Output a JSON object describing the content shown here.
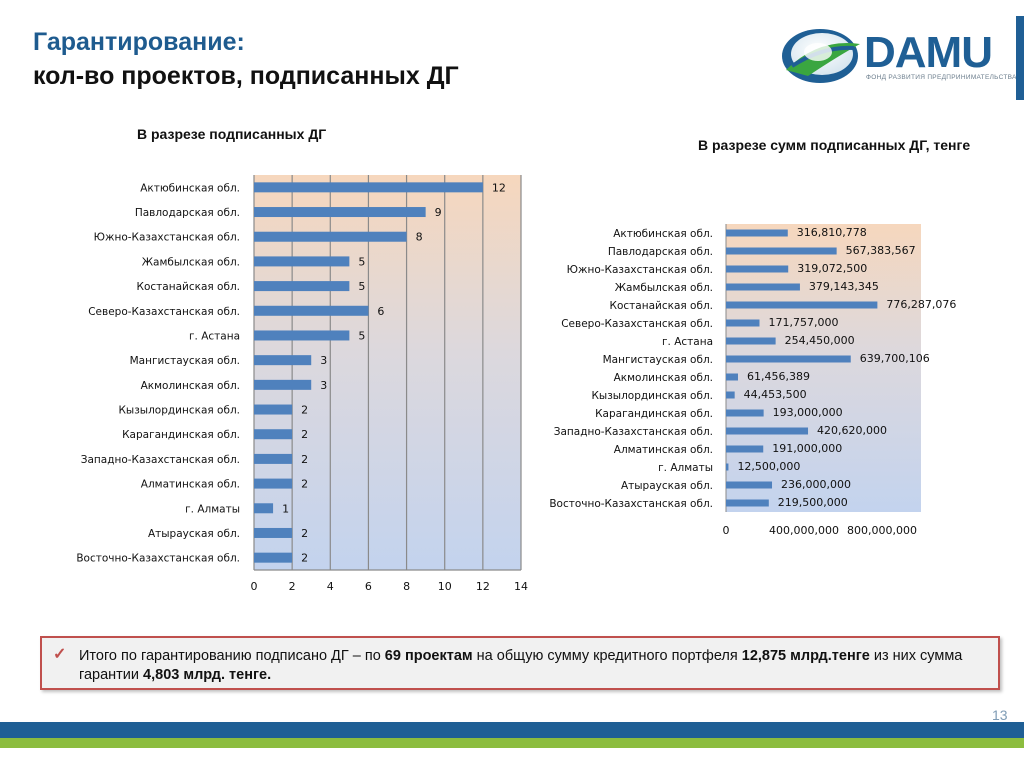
{
  "header": {
    "title_line1": "Гарантирование:",
    "title_line2": "кол-во проектов, подписанных ДГ"
  },
  "logo": {
    "name": "DAMU",
    "subtitle": "ФОНД РАЗВИТИЯ ПРЕДПРИНИМАТЕЛЬСТВА"
  },
  "chart_headings": {
    "left": "В разрезе подписанных ДГ",
    "right": "В разрезе сумм подписанных ДГ, тенге"
  },
  "chart_data": [
    {
      "type": "bar",
      "orientation": "horizontal",
      "title": "В разрезе подписанных ДГ",
      "categories": [
        "Актюбинская обл.",
        "Павлодарская обл.",
        "Южно-Казахстанская обл.",
        "Жамбылская обл.",
        "Костанайская обл.",
        "Северо-Казахстанская обл.",
        "г. Астана",
        "Мангистауская обл.",
        "Акмолинская обл.",
        "Кызылординская обл.",
        "Карагандинская обл.",
        "Западно-Казахстанская обл.",
        "Алматинская обл.",
        "г. Алматы",
        "Атырауская обл.",
        "Восточно-Казахстанская обл."
      ],
      "values": [
        12,
        9,
        8,
        5,
        5,
        6,
        5,
        3,
        3,
        2,
        2,
        2,
        2,
        1,
        2,
        2
      ],
      "data_labels": [
        "12",
        "9",
        "8",
        "5",
        "5",
        "6",
        "5",
        "3",
        "3",
        "2",
        "2",
        "2",
        "2",
        "1",
        "2",
        "2"
      ],
      "xlim": [
        0,
        14
      ],
      "xticks": [
        "0",
        "2",
        "4",
        "6",
        "8",
        "10",
        "12",
        "14"
      ],
      "grid": true,
      "bar_color": "#4f81bd"
    },
    {
      "type": "bar",
      "orientation": "horizontal",
      "title": "В разрезе сумм подписанных ДГ, тенге",
      "categories": [
        "Актюбинская обл.",
        "Павлодарская обл.",
        "Южно-Казахстанская обл.",
        "Жамбылская обл.",
        "Костанайская обл.",
        "Северо-Казахстанская обл.",
        "г. Астана",
        "Мангистауская обл.",
        "Акмолинская обл.",
        "Кызылординская обл.",
        "Карагандинская обл.",
        "Западно-Казахстанская обл.",
        "Алматинская обл.",
        "г. Алматы",
        "Атырауская обл.",
        "Восточно-Казахстанская обл."
      ],
      "values": [
        316810778,
        567383567,
        319072500,
        379143345,
        776287076,
        171757000,
        254450000,
        639700106,
        61456389,
        44453500,
        193000000,
        420620000,
        191000000,
        12500000,
        236000000,
        219500000
      ],
      "data_labels": [
        "316,810,778",
        "567,383,567",
        "319,072,500",
        "379,143,345",
        "776,287,076",
        "171,757,000",
        "254,450,000",
        "639,700,106",
        "61,456,389",
        "44,453,500",
        "193,000,000",
        "420,620,000",
        "191,000,000",
        "12,500,000",
        "236,000,000",
        "219,500,000"
      ],
      "xlim": [
        0,
        1000000000
      ],
      "xticks": [
        {
          "value": 0,
          "label": "0"
        },
        {
          "value": 400000000,
          "label": "400,000,000"
        },
        {
          "value": 800000000,
          "label": "800,000,000"
        }
      ],
      "grid": false,
      "bar_color": "#4f81bd"
    }
  ],
  "summary": {
    "text_1": "Итого по гарантированию подписано ДГ – по ",
    "projects_bold": "69 проектам",
    "text_2": " на общую сумму кредитного портфеля  ",
    "portfolio_bold": "12,875 млрд.тенге",
    "text_3": "  из них сумма гарантии ",
    "guarantee_bold": "4,803 млрд. тенге."
  },
  "footer": {
    "page_number": "13"
  },
  "colors": {
    "title_blue": "#1e5b8f",
    "bar_blue": "#4f81bd",
    "frame_red": "#c0504d",
    "footer_blue": "#1f5f95",
    "footer_green": "#8cbd3f",
    "plot_top": "#f6d7bd",
    "plot_bottom": "#c3d3ee"
  }
}
